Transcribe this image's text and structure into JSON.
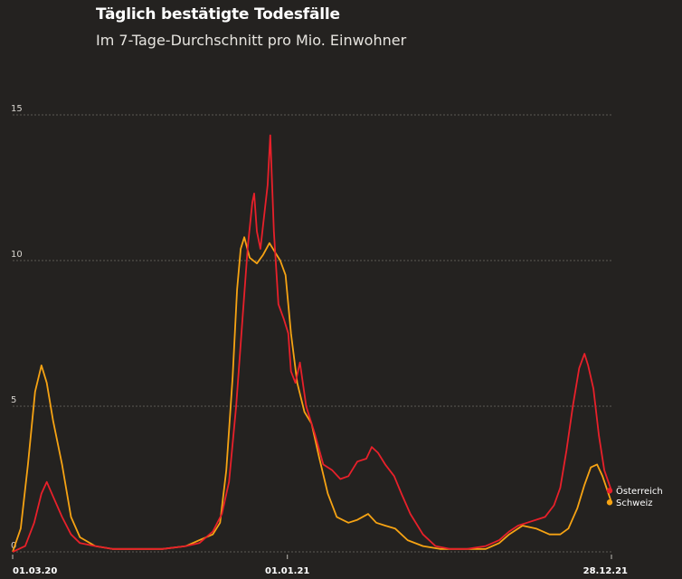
{
  "chart_data": {
    "type": "line",
    "title": "Täglich bestätigte Todesfälle",
    "subtitle": "Im 7-Tage-Durchschnitt pro Mio. Einwohner",
    "ylim": [
      0,
      15
    ],
    "y_ticks": [
      "15",
      "10",
      "5",
      "0"
    ],
    "x_ticks": [
      {
        "label": "01.03.20",
        "date": "2020-03-01"
      },
      {
        "label": "01.01.21",
        "date": "2021-01-01"
      },
      {
        "label": "28.12.21",
        "date": "2021-12-28"
      }
    ],
    "xlim": [
      "2020-03-01",
      "2021-12-28"
    ],
    "grid": true,
    "legend_position": "end-of-lines (right)",
    "series": [
      {
        "name": "Österreich",
        "color": "#e8202a",
        "points": [
          [
            "2020-03-01",
            0
          ],
          [
            "2020-03-15",
            0.2
          ],
          [
            "2020-03-25",
            1.0
          ],
          [
            "2020-04-02",
            2.0
          ],
          [
            "2020-04-08",
            2.4
          ],
          [
            "2020-04-15",
            1.9
          ],
          [
            "2020-04-25",
            1.2
          ],
          [
            "2020-05-05",
            0.6
          ],
          [
            "2020-05-15",
            0.3
          ],
          [
            "2020-06-01",
            0.2
          ],
          [
            "2020-06-20",
            0.1
          ],
          [
            "2020-07-15",
            0.1
          ],
          [
            "2020-08-15",
            0.1
          ],
          [
            "2020-09-10",
            0.2
          ],
          [
            "2020-09-25",
            0.3
          ],
          [
            "2020-10-10",
            0.7
          ],
          [
            "2020-10-20",
            1.3
          ],
          [
            "2020-10-28",
            2.4
          ],
          [
            "2020-11-05",
            5.0
          ],
          [
            "2020-11-12",
            8.0
          ],
          [
            "2020-11-18",
            10.5
          ],
          [
            "2020-11-23",
            12.0
          ],
          [
            "2020-11-25",
            12.3
          ],
          [
            "2020-11-28",
            11.0
          ],
          [
            "2020-12-02",
            10.4
          ],
          [
            "2020-12-06",
            11.5
          ],
          [
            "2020-12-10",
            12.6
          ],
          [
            "2020-12-13",
            14.3
          ],
          [
            "2020-12-17",
            11.0
          ],
          [
            "2020-12-22",
            8.5
          ],
          [
            "2020-12-28",
            8.0
          ],
          [
            "2021-01-02",
            7.5
          ],
          [
            "2021-01-05",
            6.2
          ],
          [
            "2021-01-10",
            5.8
          ],
          [
            "2021-01-15",
            6.5
          ],
          [
            "2021-01-22",
            5.0
          ],
          [
            "2021-02-01",
            4.0
          ],
          [
            "2021-02-10",
            3.0
          ],
          [
            "2021-02-20",
            2.8
          ],
          [
            "2021-03-01",
            2.5
          ],
          [
            "2021-03-10",
            2.6
          ],
          [
            "2021-03-20",
            3.1
          ],
          [
            "2021-03-30",
            3.2
          ],
          [
            "2021-04-05",
            3.6
          ],
          [
            "2021-04-12",
            3.4
          ],
          [
            "2021-04-20",
            3.0
          ],
          [
            "2021-04-30",
            2.6
          ],
          [
            "2021-05-08",
            2.0
          ],
          [
            "2021-05-18",
            1.3
          ],
          [
            "2021-06-01",
            0.6
          ],
          [
            "2021-06-15",
            0.2
          ],
          [
            "2021-07-01",
            0.1
          ],
          [
            "2021-07-20",
            0.1
          ],
          [
            "2021-08-10",
            0.2
          ],
          [
            "2021-08-25",
            0.4
          ],
          [
            "2021-09-05",
            0.7
          ],
          [
            "2021-09-15",
            0.9
          ],
          [
            "2021-09-25",
            1.0
          ],
          [
            "2021-10-05",
            1.1
          ],
          [
            "2021-10-15",
            1.2
          ],
          [
            "2021-10-25",
            1.6
          ],
          [
            "2021-11-01",
            2.2
          ],
          [
            "2021-11-08",
            3.5
          ],
          [
            "2021-11-15",
            5.0
          ],
          [
            "2021-11-22",
            6.3
          ],
          [
            "2021-11-28",
            6.8
          ],
          [
            "2021-12-02",
            6.4
          ],
          [
            "2021-12-08",
            5.6
          ],
          [
            "2021-12-14",
            4.0
          ],
          [
            "2021-12-20",
            2.8
          ],
          [
            "2021-12-28",
            2.1
          ]
        ]
      },
      {
        "name": "Schweiz",
        "color": "#f6a313",
        "points": [
          [
            "2020-03-01",
            0
          ],
          [
            "2020-03-10",
            0.8
          ],
          [
            "2020-03-18",
            3.0
          ],
          [
            "2020-03-26",
            5.5
          ],
          [
            "2020-04-02",
            6.4
          ],
          [
            "2020-04-08",
            5.8
          ],
          [
            "2020-04-15",
            4.5
          ],
          [
            "2020-04-25",
            3.0
          ],
          [
            "2020-05-05",
            1.2
          ],
          [
            "2020-05-15",
            0.5
          ],
          [
            "2020-06-01",
            0.2
          ],
          [
            "2020-06-20",
            0.1
          ],
          [
            "2020-07-15",
            0.1
          ],
          [
            "2020-08-15",
            0.1
          ],
          [
            "2020-09-10",
            0.2
          ],
          [
            "2020-09-25",
            0.4
          ],
          [
            "2020-10-10",
            0.6
          ],
          [
            "2020-10-18",
            1.0
          ],
          [
            "2020-10-25",
            2.8
          ],
          [
            "2020-11-01",
            6.0
          ],
          [
            "2020-11-06",
            9.0
          ],
          [
            "2020-11-10",
            10.4
          ],
          [
            "2020-11-14",
            10.8
          ],
          [
            "2020-11-20",
            10.1
          ],
          [
            "2020-11-28",
            9.9
          ],
          [
            "2020-12-05",
            10.2
          ],
          [
            "2020-12-12",
            10.6
          ],
          [
            "2020-12-18",
            10.3
          ],
          [
            "2020-12-24",
            10.0
          ],
          [
            "2020-12-30",
            9.5
          ],
          [
            "2021-01-05",
            7.5
          ],
          [
            "2021-01-12",
            5.8
          ],
          [
            "2021-01-20",
            4.8
          ],
          [
            "2021-01-28",
            4.4
          ],
          [
            "2021-02-05",
            3.3
          ],
          [
            "2021-02-15",
            2.0
          ],
          [
            "2021-02-25",
            1.2
          ],
          [
            "2021-03-10",
            1.0
          ],
          [
            "2021-03-20",
            1.1
          ],
          [
            "2021-04-01",
            1.3
          ],
          [
            "2021-04-10",
            1.0
          ],
          [
            "2021-04-20",
            0.9
          ],
          [
            "2021-05-01",
            0.8
          ],
          [
            "2021-05-15",
            0.4
          ],
          [
            "2021-06-01",
            0.2
          ],
          [
            "2021-06-20",
            0.1
          ],
          [
            "2021-07-15",
            0.1
          ],
          [
            "2021-08-10",
            0.1
          ],
          [
            "2021-08-25",
            0.3
          ],
          [
            "2021-09-05",
            0.6
          ],
          [
            "2021-09-20",
            0.9
          ],
          [
            "2021-10-05",
            0.8
          ],
          [
            "2021-10-20",
            0.6
          ],
          [
            "2021-11-01",
            0.6
          ],
          [
            "2021-11-10",
            0.8
          ],
          [
            "2021-11-20",
            1.5
          ],
          [
            "2021-11-28",
            2.3
          ],
          [
            "2021-12-05",
            2.9
          ],
          [
            "2021-12-12",
            3.0
          ],
          [
            "2021-12-18",
            2.6
          ],
          [
            "2021-12-28",
            1.7
          ]
        ]
      }
    ]
  }
}
